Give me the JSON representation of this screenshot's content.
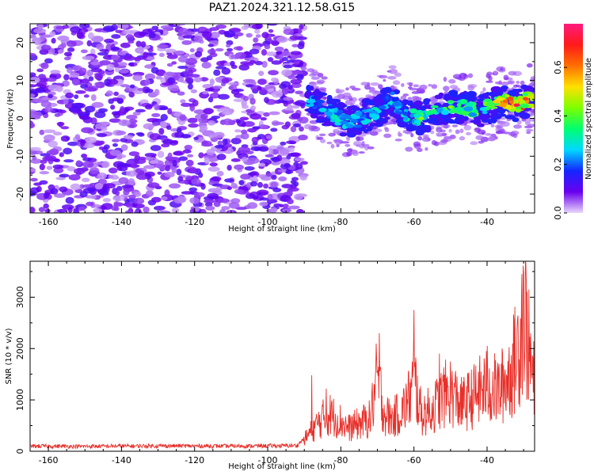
{
  "title": "PAZ1.2024.321.12.58.G15",
  "chart_data": [
    {
      "type": "heatmap",
      "title": "",
      "xlabel": "Height of straight line (km)",
      "ylabel": "Frequency (Hz)",
      "xlim": [
        -165,
        -27
      ],
      "ylim": [
        -25,
        25
      ],
      "x_ticks": [
        -160,
        -140,
        -120,
        -100,
        -80,
        -60,
        -40
      ],
      "y_ticks": [
        -20,
        -10,
        0,
        10,
        20
      ],
      "colorbar": {
        "label": "Normalized spectral amplitude",
        "range": [
          0,
          0.78
        ],
        "ticks": [
          0.0,
          0.2,
          0.4,
          0.6
        ],
        "colormap": [
          "#e8d6fb",
          "#6a00ee",
          "#1426ff",
          "#00d8ff",
          "#00ff70",
          "#7dff00",
          "#ffe000",
          "#ff7000",
          "#ff1a1a",
          "#ff1a7d"
        ]
      },
      "noise_region": {
        "x_range": [
          -165,
          -90
        ],
        "freq_range": [
          -25,
          25
        ],
        "amplitude": [
          0.02,
          0.12
        ]
      },
      "signal_ridge": [
        {
          "x": -89,
          "freq": 5.5,
          "amplitude": 0.28
        },
        {
          "x": -86,
          "freq": 3.0,
          "amplitude": 0.25
        },
        {
          "x": -82,
          "freq": 1.0,
          "amplitude": 0.3
        },
        {
          "x": -78,
          "freq": -1.0,
          "amplitude": 0.32
        },
        {
          "x": -74,
          "freq": 0.0,
          "amplitude": 0.27
        },
        {
          "x": -70,
          "freq": 2.0,
          "amplitude": 0.3
        },
        {
          "x": -66,
          "freq": 5.0,
          "amplitude": 0.28
        },
        {
          "x": -62,
          "freq": 0.5,
          "amplitude": 0.32
        },
        {
          "x": -58,
          "freq": 0.0,
          "amplitude": 0.38
        },
        {
          "x": -54,
          "freq": 2.0,
          "amplitude": 0.36
        },
        {
          "x": -50,
          "freq": 3.0,
          "amplitude": 0.4
        },
        {
          "x": -46,
          "freq": 3.0,
          "amplitude": 0.38
        },
        {
          "x": -42,
          "freq": 2.0,
          "amplitude": 0.42
        },
        {
          "x": -38,
          "freq": 3.5,
          "amplitude": 0.5
        },
        {
          "x": -35,
          "freq": 4.5,
          "amplitude": 0.65
        },
        {
          "x": -32,
          "freq": 3.5,
          "amplitude": 0.72
        },
        {
          "x": -29,
          "freq": 5.0,
          "amplitude": 0.6
        }
      ]
    },
    {
      "type": "line",
      "title": "",
      "xlabel": "Height of straight line (km)",
      "ylabel": "SNR (10 * v/v)",
      "xlim": [
        -165,
        -27
      ],
      "ylim": [
        0,
        3700
      ],
      "x_ticks": [
        -160,
        -140,
        -120,
        -100,
        -80,
        -60,
        -40
      ],
      "y_ticks": [
        0,
        1000,
        2000,
        3000
      ],
      "color": "#e8302a",
      "series": [
        {
          "x": [
            -165,
            -150,
            -130,
            -110,
            -92,
            -90,
            -88,
            -85,
            -83,
            -80,
            -78,
            -75,
            -72,
            -70,
            -68,
            -66,
            -63,
            -61,
            -60,
            -58,
            -55,
            -52,
            -50,
            -47,
            -45,
            -42,
            -40,
            -37,
            -35,
            -33,
            -31,
            -30,
            -29,
            -28,
            -27
          ],
          "y": [
            100,
            95,
            105,
            100,
            110,
            250,
            450,
            700,
            800,
            650,
            500,
            600,
            700,
            1600,
            800,
            700,
            900,
            1200,
            1600,
            800,
            900,
            1200,
            1300,
            1000,
            1100,
            1300,
            1400,
            1300,
            1500,
            1800,
            2400,
            3200,
            2500,
            1800,
            1400
          ],
          "peaks": [
            {
              "x": -88,
              "y": 1480
            },
            {
              "x": -84,
              "y": 1220
            },
            {
              "x": -69.5,
              "y": 2300
            },
            {
              "x": -60,
              "y": 2750
            },
            {
              "x": -53,
              "y": 1900
            },
            {
              "x": -40,
              "y": 2050
            },
            {
              "x": -30.5,
              "y": 3450
            },
            {
              "x": -29.5,
              "y": 3700
            }
          ]
        }
      ]
    }
  ]
}
